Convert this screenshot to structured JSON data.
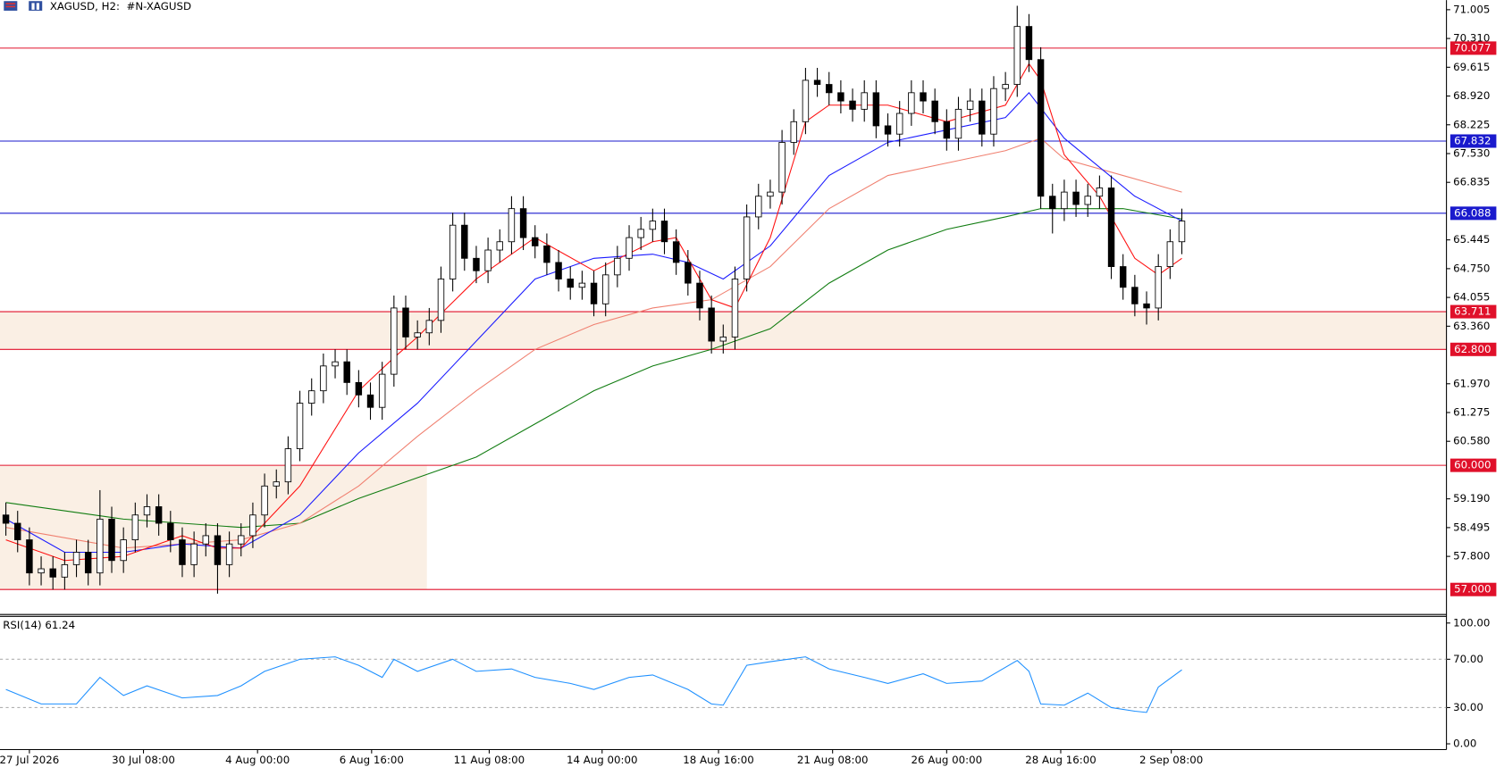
{
  "chart_data": {
    "type": "candlestick",
    "title": "XAGUSD, H2:  #N-XAGUSD",
    "open": [
      58.8,
      58.6,
      58.2,
      57.4,
      57.5,
      57.3,
      57.6,
      57.9,
      57.4,
      58.7,
      57.7,
      58.2,
      58.8,
      59.0,
      58.6,
      58.2,
      57.6,
      58.1,
      58.3,
      57.6,
      58.1,
      58.3,
      58.8,
      59.5,
      59.6,
      60.4,
      61.5,
      61.8,
      62.4,
      62.5,
      62.0,
      61.7,
      61.4,
      62.2,
      63.8,
      63.1,
      63.2,
      63.5,
      64.5,
      65.8,
      65.0,
      64.7,
      65.2,
      65.4,
      66.2,
      65.5,
      65.3,
      64.9,
      64.5,
      64.3,
      64.4,
      63.9,
      64.6,
      65.0,
      65.5,
      65.7,
      65.9,
      65.4,
      64.9,
      64.4,
      63.8,
      63.0,
      63.1,
      64.5,
      66.0,
      66.5,
      66.6,
      67.8,
      68.3,
      69.3,
      69.2,
      69.0,
      68.8,
      68.6,
      69.0,
      68.2,
      68.0,
      68.5,
      69.0,
      68.8,
      68.3,
      67.9,
      68.6,
      68.8,
      68.0,
      69.1,
      69.2,
      70.6,
      69.8,
      66.5,
      66.2,
      66.6,
      66.3,
      66.5,
      66.7,
      64.8,
      64.3,
      63.9,
      63.8,
      64.8,
      65.4
    ],
    "high": [
      59.1,
      58.9,
      58.5,
      57.8,
      57.8,
      57.9,
      58.2,
      58.2,
      59.4,
      59.0,
      58.5,
      59.1,
      59.3,
      59.3,
      58.9,
      58.5,
      58.4,
      58.6,
      58.6,
      58.4,
      58.6,
      59.1,
      59.8,
      59.9,
      60.7,
      61.8,
      62.1,
      62.7,
      62.8,
      62.8,
      62.3,
      62.0,
      62.5,
      64.1,
      64.1,
      63.5,
      63.8,
      64.8,
      66.1,
      66.1,
      65.3,
      65.5,
      65.7,
      66.5,
      66.5,
      65.8,
      65.6,
      65.2,
      64.8,
      64.7,
      64.7,
      64.9,
      65.3,
      65.8,
      66.0,
      66.2,
      66.2,
      65.7,
      65.2,
      64.7,
      64.1,
      63.4,
      64.8,
      66.3,
      66.8,
      66.9,
      68.1,
      68.6,
      69.6,
      69.6,
      69.5,
      69.3,
      69.1,
      69.3,
      69.3,
      68.5,
      68.8,
      69.3,
      69.3,
      69.1,
      68.6,
      68.9,
      69.1,
      69.1,
      69.4,
      69.5,
      71.1,
      70.9,
      70.1,
      66.8,
      66.9,
      66.9,
      66.8,
      67.0,
      67.0,
      65.1,
      64.6,
      64.2,
      65.1,
      65.7,
      66.2
    ],
    "low": [
      58.3,
      57.9,
      57.1,
      57.1,
      57.0,
      57.0,
      57.3,
      57.1,
      57.1,
      57.4,
      57.4,
      57.9,
      58.5,
      58.3,
      57.9,
      57.3,
      57.3,
      57.8,
      56.9,
      57.3,
      57.8,
      58.0,
      58.5,
      59.2,
      59.3,
      60.1,
      61.2,
      61.5,
      62.1,
      61.7,
      61.4,
      61.1,
      61.1,
      61.9,
      62.8,
      62.8,
      62.9,
      63.2,
      64.2,
      64.7,
      64.4,
      64.4,
      64.9,
      65.1,
      65.2,
      65.0,
      64.6,
      64.2,
      64.0,
      64.0,
      63.6,
      63.6,
      64.3,
      64.7,
      65.2,
      65.4,
      65.1,
      64.6,
      64.1,
      63.5,
      62.7,
      62.7,
      62.8,
      64.2,
      65.7,
      66.2,
      66.3,
      67.5,
      68.0,
      68.9,
      68.7,
      68.5,
      68.3,
      68.3,
      67.9,
      67.7,
      67.7,
      68.2,
      68.5,
      68.0,
      67.6,
      67.6,
      68.3,
      67.7,
      67.7,
      68.8,
      68.9,
      69.5,
      66.2,
      65.6,
      65.9,
      66.0,
      66.0,
      66.2,
      64.5,
      64.0,
      63.6,
      63.4,
      63.5,
      64.5,
      65.1
    ],
    "close": [
      58.6,
      58.2,
      57.4,
      57.5,
      57.3,
      57.6,
      57.9,
      57.4,
      58.7,
      57.7,
      58.2,
      58.8,
      59.0,
      58.6,
      58.2,
      57.6,
      58.1,
      58.3,
      57.6,
      58.1,
      58.3,
      58.8,
      59.5,
      59.6,
      60.4,
      61.5,
      61.8,
      62.4,
      62.5,
      62.0,
      61.7,
      61.4,
      62.2,
      63.8,
      63.1,
      63.2,
      63.5,
      64.5,
      65.8,
      65.0,
      64.7,
      65.2,
      65.4,
      66.2,
      65.5,
      65.3,
      64.9,
      64.5,
      64.3,
      64.4,
      63.9,
      64.6,
      65.0,
      65.5,
      65.7,
      65.9,
      65.4,
      64.9,
      64.4,
      63.8,
      63.0,
      63.1,
      64.5,
      66.0,
      66.5,
      66.6,
      67.8,
      68.3,
      69.3,
      69.2,
      69.0,
      68.8,
      68.6,
      69.0,
      68.2,
      68.0,
      68.5,
      69.0,
      68.8,
      68.3,
      67.9,
      68.6,
      68.8,
      68.0,
      69.1,
      69.2,
      70.6,
      69.8,
      66.5,
      66.2,
      66.6,
      66.3,
      66.5,
      66.7,
      64.8,
      64.3,
      63.9,
      63.8,
      64.8,
      65.4,
      65.9
    ],
    "colors": {
      "up": "#ffffff",
      "down": "#000000",
      "wick": "#000000"
    },
    "xlim": [
      -0.5,
      122.5
    ],
    "xticks": [
      {
        "value": 2,
        "label": "27 Jul 2026"
      },
      {
        "value": 11.7,
        "label": "30 Jul 08:00"
      },
      {
        "value": 21.4,
        "label": "4 Aug 00:00"
      },
      {
        "value": 31.1,
        "label": "6 Aug 16:00"
      },
      {
        "value": 41.1,
        "label": "11 Aug 08:00"
      },
      {
        "value": 50.7,
        "label": "14 Aug 00:00"
      },
      {
        "value": 60.6,
        "label": "18 Aug 16:00"
      },
      {
        "value": 70.3,
        "label": "21 Aug 08:00"
      },
      {
        "value": 80,
        "label": "26 Aug 00:00"
      },
      {
        "value": 89.7,
        "label": "28 Aug 16:00"
      },
      {
        "value": 99.1,
        "label": "2 Sep 08:00"
      }
    ],
    "ylim": [
      56.42,
      71.236
    ],
    "yticks": [
      71.005,
      {
        "value": 70.31,
        "label": "70.310"
      },
      69.615,
      {
        "value": 68.92,
        "label": "68.920"
      },
      68.225,
      {
        "value": 67.53,
        "label": "67.530"
      },
      66.835,
      65.445,
      {
        "value": 64.75,
        "label": "64.750"
      },
      64.055,
      {
        "value": 63.36,
        "label": "63.360"
      },
      {
        "value": 61.97,
        "label": "61.970"
      },
      61.275,
      {
        "value": 60.58,
        "label": "60.580"
      },
      {
        "value": 59.19,
        "label": "59.190"
      },
      58.495,
      {
        "value": 57.8,
        "label": "57.800"
      }
    ],
    "levels": [
      {
        "value": 70.077,
        "color": "#e0102a"
      },
      {
        "value": 67.832,
        "color": "#1a1acd"
      },
      {
        "value": 66.088,
        "color": "#1a1acd"
      },
      {
        "value": 63.711,
        "color": "#e0102a"
      },
      {
        "value": 62.8,
        "label": "62.800",
        "color": "#e0102a"
      },
      {
        "value": 60,
        "label": "60.000",
        "color": "#e0102a"
      },
      {
        "value": 57,
        "label": "57.000",
        "color": "#e0102a"
      }
    ],
    "zones": [
      {
        "from": 62.8,
        "to": 63.711,
        "color": "#faefe4"
      },
      {
        "from": 57,
        "to": 60,
        "x_end": 35.8,
        "color": "#faefe4"
      }
    ],
    "moving_averages": [
      {
        "color": "#107c10",
        "x": [
          0,
          10,
          20,
          25,
          30,
          35,
          40,
          45,
          50,
          55,
          60,
          65,
          70,
          75,
          80,
          85,
          88,
          90,
          95,
          100
        ],
        "values": [
          59.1,
          58.7,
          58.5,
          58.6,
          59.2,
          59.7,
          60.2,
          61.0,
          61.8,
          62.4,
          62.8,
          63.3,
          64.4,
          65.2,
          65.7,
          66.0,
          66.2,
          66.2,
          66.2,
          65.95
        ]
      },
      {
        "color": "#f08070",
        "x": [
          0,
          10,
          20,
          25,
          30,
          35,
          40,
          45,
          50,
          55,
          60,
          65,
          70,
          75,
          80,
          85,
          88,
          90,
          95,
          100
        ],
        "values": [
          58.5,
          58.0,
          58.2,
          58.6,
          59.5,
          60.7,
          61.8,
          62.8,
          63.4,
          63.8,
          64.0,
          64.8,
          66.2,
          67.0,
          67.3,
          67.6,
          67.9,
          67.4,
          67.0,
          66.6
        ]
      },
      {
        "color": "#1a1aff",
        "x": [
          0,
          5,
          10,
          15,
          20,
          25,
          30,
          35,
          40,
          45,
          50,
          55,
          58,
          61,
          65,
          70,
          75,
          80,
          85,
          87,
          90,
          93,
          96,
          100
        ],
        "values": [
          58.7,
          57.9,
          57.9,
          58.1,
          58.0,
          58.8,
          60.3,
          61.5,
          63.0,
          64.5,
          65.0,
          65.1,
          64.9,
          64.5,
          65.3,
          67.0,
          67.8,
          68.1,
          68.4,
          69.0,
          67.9,
          67.2,
          66.5,
          65.9
        ]
      },
      {
        "color": "#ff1010",
        "x": [
          0,
          5,
          10,
          15,
          18,
          20,
          25,
          30,
          33,
          35,
          40,
          45,
          50,
          55,
          57,
          60,
          62,
          65,
          68,
          70,
          75,
          80,
          85,
          87,
          88,
          90,
          93,
          96,
          98,
          100
        ],
        "values": [
          58.2,
          57.7,
          57.8,
          58.3,
          58.0,
          58.0,
          59.5,
          61.8,
          62.6,
          63.1,
          64.5,
          65.5,
          64.7,
          65.4,
          65.5,
          64.0,
          63.8,
          65.5,
          68.3,
          68.7,
          68.7,
          68.3,
          68.7,
          69.7,
          69.3,
          67.5,
          66.5,
          65.0,
          64.6,
          65.0
        ]
      }
    ],
    "rsi": {
      "label": "RSI(14)",
      "color": "#1e90ff",
      "x": [
        0,
        3,
        6,
        8,
        10,
        12,
        15,
        18,
        20,
        22,
        25,
        28,
        30,
        32,
        33,
        35,
        38,
        40,
        43,
        45,
        48,
        50,
        53,
        55,
        58,
        60,
        61,
        63,
        65,
        68,
        70,
        73,
        75,
        78,
        80,
        83,
        86,
        87,
        88,
        90,
        92,
        94,
        96,
        97,
        98,
        100
      ],
      "values": [
        45,
        33,
        33,
        55,
        40,
        48,
        38,
        40,
        48,
        60,
        70,
        72,
        65,
        55,
        70,
        60,
        70,
        60,
        62,
        55,
        50,
        45,
        55,
        57,
        45,
        33,
        32,
        65,
        68,
        72,
        62,
        55,
        50,
        58,
        50,
        52,
        69,
        60,
        33,
        32,
        42,
        30,
        27,
        26,
        47,
        61.24
      ],
      "ylim": [
        -4.8,
        105.5
      ],
      "yticks": [
        {
          "value": 100,
          "label": "100.00"
        },
        {
          "value": 70,
          "label": "70.00"
        },
        {
          "value": 30,
          "label": "30.00"
        },
        {
          "value": 0,
          "label": "0.00"
        }
      ],
      "levels": [
        70,
        30
      ]
    }
  }
}
